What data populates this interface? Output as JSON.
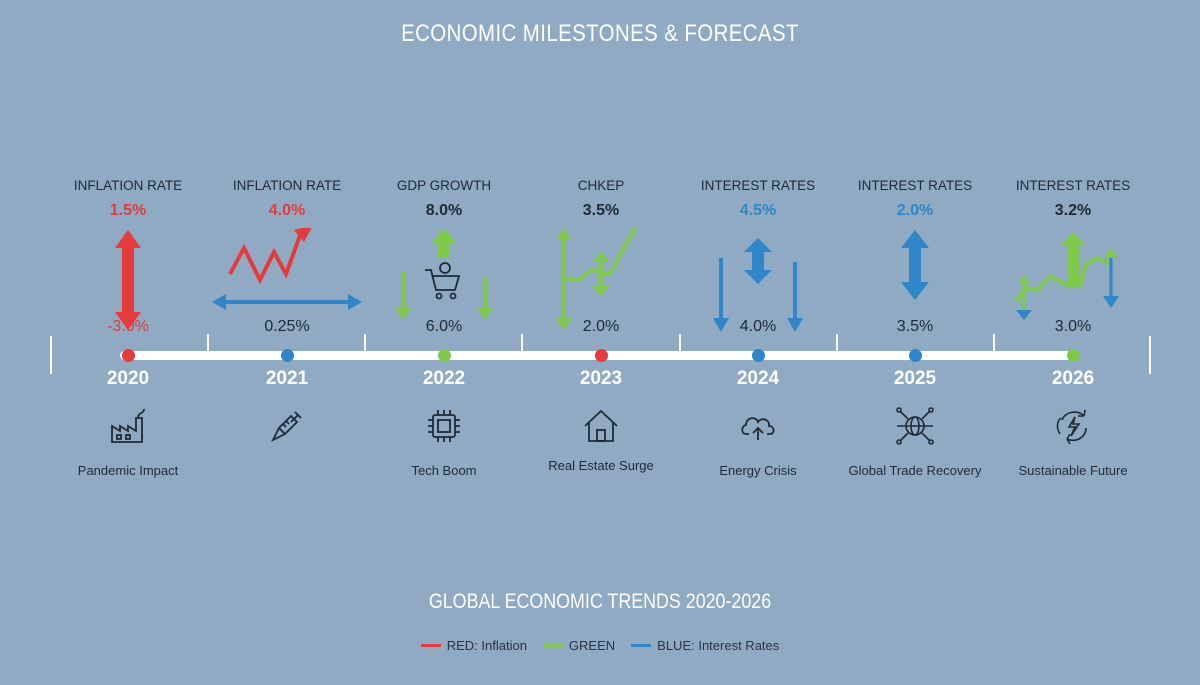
{
  "title": "ECONOMIC MILESTONES & FORECAST",
  "subtitle": "GLOBAL ECONOMIC TRENDS 2020-2026",
  "colors": {
    "red": "#e53b3b",
    "green": "#7ec94a",
    "blue": "#2f86c9",
    "background": "#8faac2"
  },
  "legend": [
    {
      "label": "RED: Inflation",
      "color": "#e53b3b"
    },
    {
      "label": "GREEN",
      "color": "#7ec94a"
    },
    {
      "label": "BLUE: Interest Rates",
      "color": "#2f86c9"
    }
  ],
  "columns": [
    {
      "year": "2020",
      "metric": "INFLATION RATE",
      "value_top": "1.5%",
      "value_bottom": "-3.0%",
      "event": "Pandemic Impact",
      "icon": "factory-icon",
      "color": "#e53b3b",
      "bottom_color": "#e53b3b"
    },
    {
      "year": "2021",
      "metric": "INFLATION RATE",
      "value_top": "4.0%",
      "value_bottom": "0.25%",
      "event": "",
      "icon": "syringe-icon",
      "color": "#e53b3b",
      "bottom_color": "#1f2a36"
    },
    {
      "year": "2022",
      "metric": "GDP GROWTH",
      "value_top": "8.0%",
      "value_bottom": "6.0%",
      "event": "Tech Boom",
      "icon": "chip-icon",
      "color": "#1f2a36",
      "bottom_color": "#1f2a36"
    },
    {
      "year": "2023",
      "metric": "CHKEP",
      "value_top": "3.5%",
      "value_bottom": "2.0%",
      "event": "Real Estate Surge",
      "icon": "house-icon",
      "color": "#1f2a36",
      "bottom_color": "#1f2a36"
    },
    {
      "year": "2024",
      "metric": "INTEREST RATES",
      "value_top": "4.5%",
      "value_bottom": "4.0%",
      "event": "Energy Crisis",
      "icon": "cloud-upload-icon",
      "color": "#2f86c9",
      "bottom_color": "#1f2a36"
    },
    {
      "year": "2025",
      "metric": "INTEREST RATES",
      "value_top": "2.0%",
      "value_bottom": "3.5%",
      "event": "Global Trade Recovery",
      "icon": "globe-network-icon",
      "color": "#2f86c9",
      "bottom_color": "#1f2a36"
    },
    {
      "year": "2026",
      "metric": "INTEREST RATES",
      "value_top": "3.2%",
      "value_bottom": "3.0%",
      "event": "Sustainable Future",
      "icon": "recycle-energy-icon",
      "color": "#1f2a36",
      "bottom_color": "#1f2a36"
    }
  ],
  "dots": [
    "#e53b3b",
    "#2f86c9",
    "#7ec94a",
    "#e53b3b",
    "#2f86c9",
    "#2f86c9",
    "#7ec94a"
  ]
}
